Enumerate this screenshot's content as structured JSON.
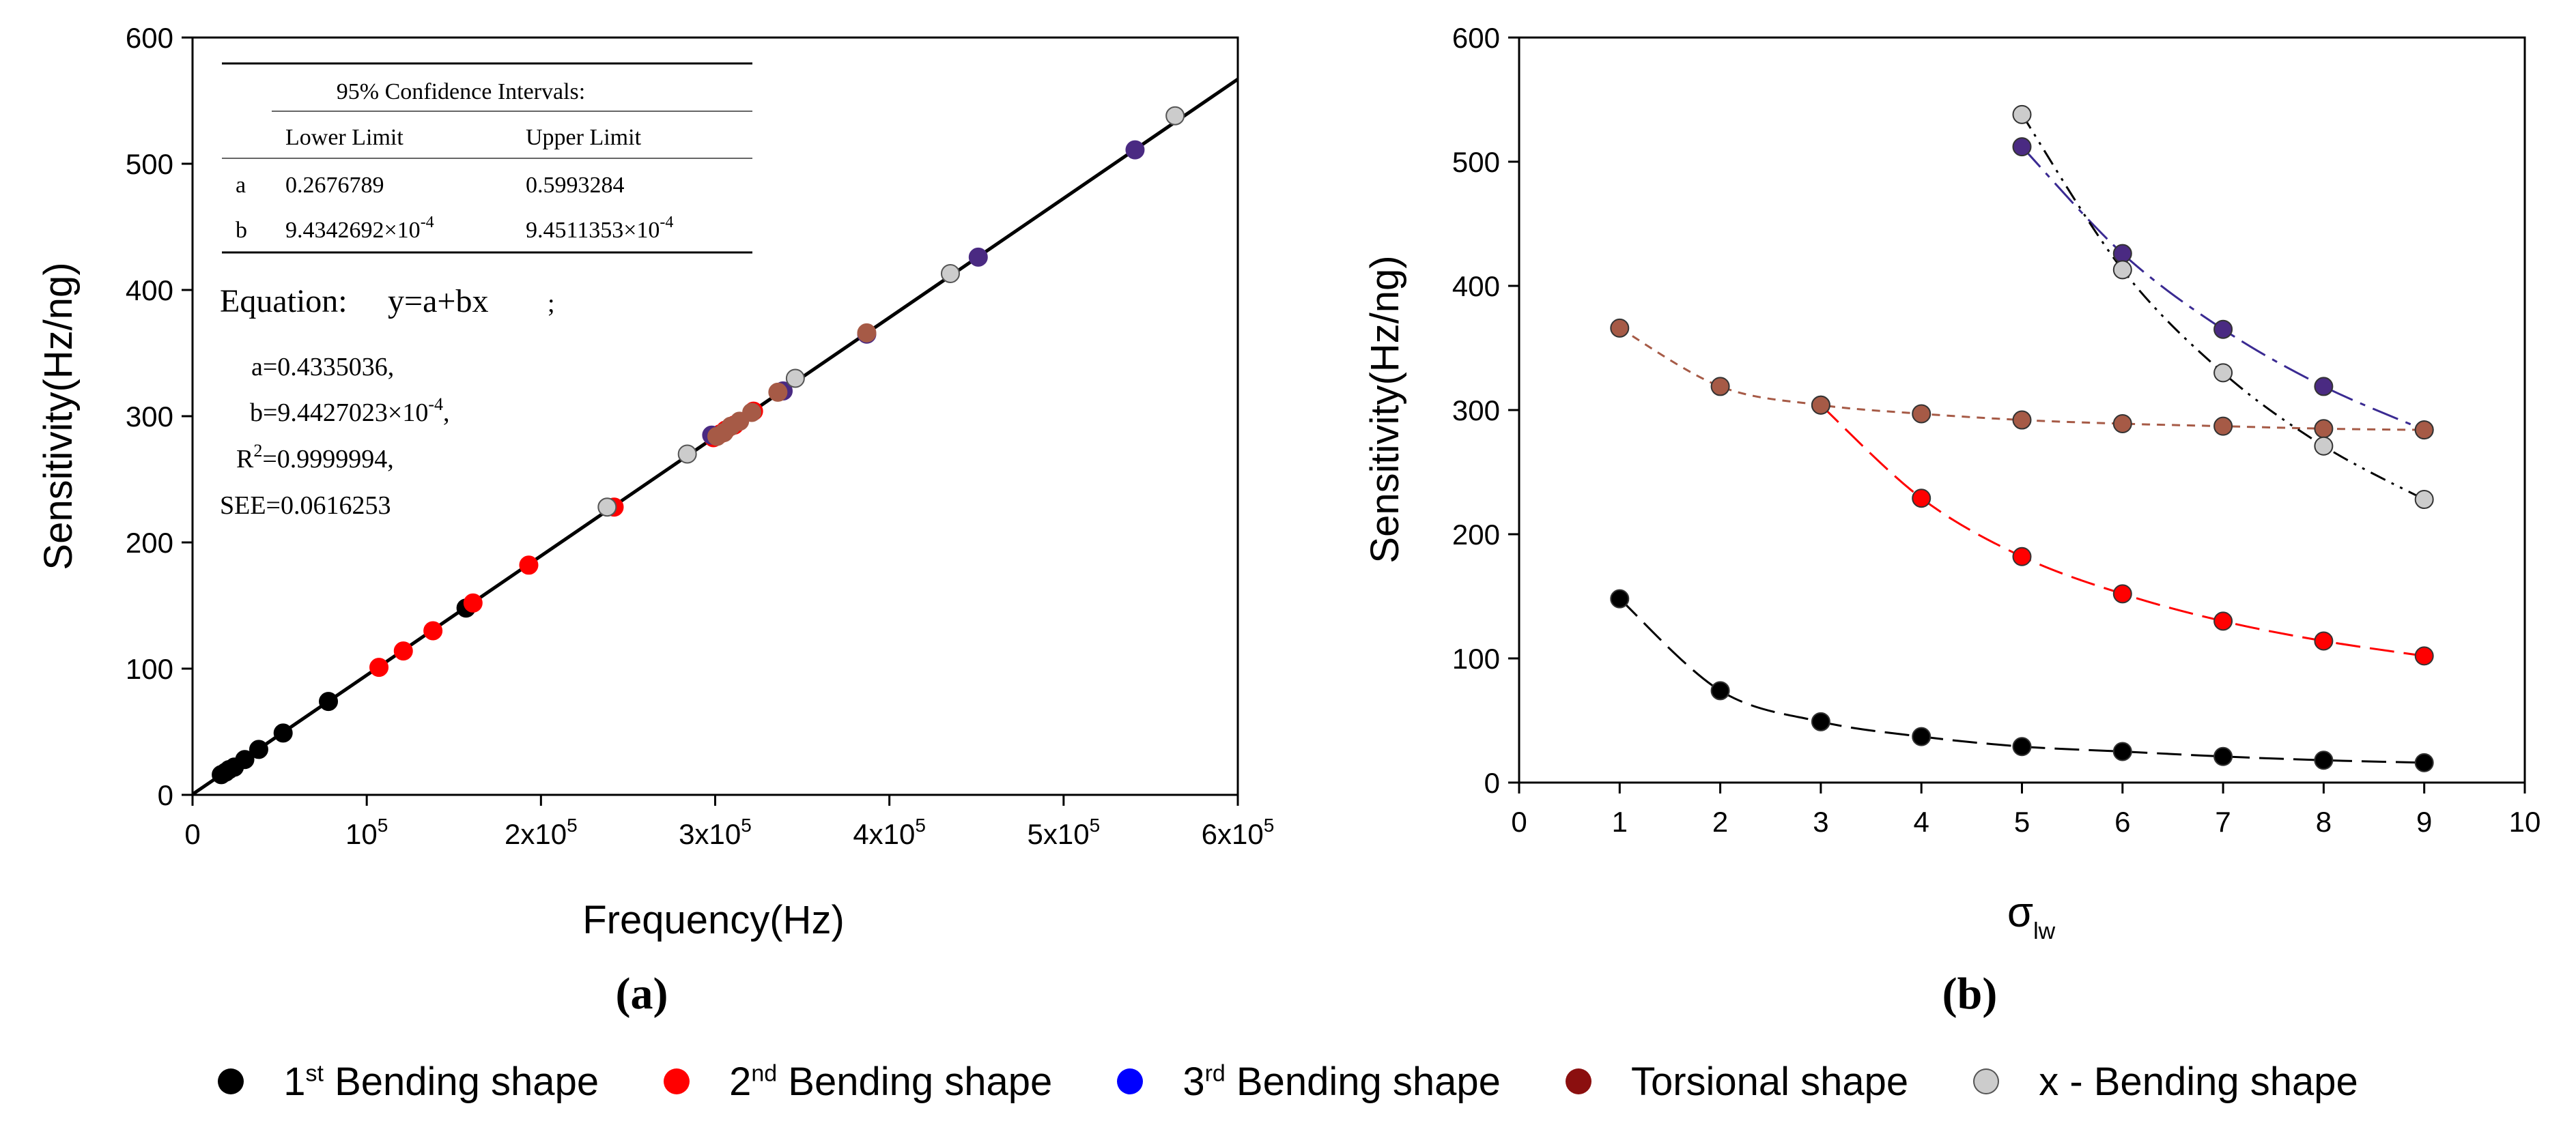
{
  "chart_data": [
    {
      "type": "scatter",
      "caption": "(a)",
      "xlabel": "Frequency(Hz)",
      "ylabel": "Sensitivity(Hz/ng)",
      "xlim": [
        0,
        600000
      ],
      "ylim": [
        0,
        600
      ],
      "x_ticks": [
        {
          "value": 0,
          "label": "0"
        },
        {
          "value": 100000,
          "base": "10",
          "exp": "5"
        },
        {
          "value": 200000,
          "base": "2x10",
          "exp": "5"
        },
        {
          "value": 300000,
          "base": "3x10",
          "exp": "5"
        },
        {
          "value": 400000,
          "base": "4x10",
          "exp": "5"
        },
        {
          "value": 500000,
          "base": "5x10",
          "exp": "5"
        },
        {
          "value": 600000,
          "base": "6x10",
          "exp": "5"
        }
      ],
      "y_ticks": [
        0,
        100,
        200,
        300,
        400,
        500,
        600
      ],
      "fit_line": {
        "a": 0.4335036,
        "b": 0.00094427023
      },
      "series": [
        {
          "name": "1st Bending shape",
          "color": "#000000",
          "points": [
            [
              16500,
              16
            ],
            [
              19000,
              18
            ],
            [
              21000,
              20
            ],
            [
              24000,
              22
            ],
            [
              30000,
              28
            ],
            [
              38000,
              36
            ],
            [
              52000,
              49
            ],
            [
              78000,
              74
            ],
            [
              157000,
              148
            ]
          ]
        },
        {
          "name": "2nd Bending shape",
          "color": "#ff0000",
          "points": [
            [
              107000,
              101
            ],
            [
              121000,
              114
            ],
            [
              138000,
              130
            ],
            [
              161000,
              152
            ],
            [
              193000,
              182
            ],
            [
              242000,
              228
            ],
            [
              299000,
              283
            ],
            [
              303000,
              286
            ],
            [
              306000,
              289
            ],
            [
              311000,
              293
            ],
            [
              322000,
              304
            ]
          ]
        },
        {
          "name": "3rd Bending shape",
          "color": "#4a2a82",
          "points": [
            [
              298000,
              285
            ],
            [
              339000,
              320
            ],
            [
              387000,
              365
            ],
            [
              451000,
              426
            ],
            [
              541000,
              511
            ]
          ]
        },
        {
          "name": "Torsional shape",
          "color": "#a65a46",
          "points": [
            [
              301000,
              284
            ],
            [
              305000,
              287
            ],
            [
              309000,
              292
            ],
            [
              314000,
              296
            ],
            [
              321000,
              303
            ],
            [
              336000,
              319
            ],
            [
              387000,
              366
            ]
          ]
        },
        {
          "name": "x - Bending shape",
          "color": "#cccccc",
          "points": [
            [
              238000,
              228
            ],
            [
              284000,
              270
            ],
            [
              346000,
              330
            ],
            [
              435000,
              413
            ],
            [
              564000,
              538
            ]
          ]
        }
      ],
      "inset": {
        "title": "95% Confidence Intervals:",
        "col_lower": "Lower Limit",
        "col_upper": "Upper Limit",
        "row_a": {
          "name": "a",
          "lower": "0.2676789",
          "upper": "0.5993284"
        },
        "row_b": {
          "name": "b",
          "lower_base": "9.4342692×10",
          "lower_exp": "-4",
          "upper_base": "9.4511353×10",
          "upper_exp": "-4"
        },
        "equation_label": "Equation:",
        "equation": "y=a+bx",
        "equation_suffix": ";",
        "a_value": "a=0.4335036,",
        "b_value_base": "b=9.4427023×10",
        "b_value_exp": "-4",
        "b_value_suffix": ",",
        "r2_pre": "R",
        "r2_exp": "2",
        "r2_post": "=0.9999994,",
        "see_value": "SEE=0.0616253"
      }
    },
    {
      "type": "line",
      "caption": "(b)",
      "xlabel": "σ",
      "xlabel_sub": "lw",
      "ylabel": "Sensitivity(Hz/ng)",
      "xlim": [
        0,
        10
      ],
      "ylim": [
        0,
        600
      ],
      "x_ticks": [
        0,
        1,
        2,
        3,
        4,
        5,
        6,
        7,
        8,
        9,
        10
      ],
      "y_ticks": [
        0,
        100,
        200,
        300,
        400,
        500,
        600
      ],
      "series": [
        {
          "name": "1st Bending shape",
          "color": "#000000",
          "line_color": "#000000",
          "dash": "36 14",
          "x": [
            1,
            2,
            3,
            4,
            5,
            6,
            7,
            8,
            9
          ],
          "values": [
            148,
            74,
            49,
            37,
            29,
            25,
            21,
            18,
            16
          ]
        },
        {
          "name": "2nd Bending shape",
          "color": "#ff0000",
          "line_color": "#ff0000",
          "dash": "36 14",
          "x": [
            3,
            4,
            5,
            6,
            7,
            8,
            9
          ],
          "values": [
            304,
            229,
            182,
            152,
            130,
            114,
            102
          ]
        },
        {
          "name": "3rd Bending shape",
          "color": "#4a2a82",
          "line_color": "#3a2a92",
          "dash": "40 12 8 12",
          "x": [
            5,
            6,
            7,
            8,
            9
          ],
          "values": [
            512,
            426,
            365,
            319,
            284
          ]
        },
        {
          "name": "Torsional shape",
          "color": "#a65a46",
          "line_color": "#a65a46",
          "dash": "12 10",
          "x": [
            1,
            2,
            3,
            4,
            5,
            6,
            7,
            8,
            9
          ],
          "values": [
            366,
            319,
            304,
            297,
            292,
            289,
            287,
            285,
            284
          ]
        },
        {
          "name": "x - Bending shape",
          "color": "#cccccc",
          "line_color": "#000000",
          "dash": "24 10 4 10 4 10",
          "x": [
            5,
            6,
            7,
            8,
            9
          ],
          "values": [
            538,
            413,
            330,
            271,
            228
          ]
        }
      ]
    }
  ],
  "legend": [
    {
      "base": "1",
      "sup": "st",
      "rest": " Bending shape",
      "color": "#000000"
    },
    {
      "base": "2",
      "sup": "nd",
      "rest": " Bending shape",
      "color": "#ff0000"
    },
    {
      "base": "3",
      "sup": "rd",
      "rest": " Bending shape",
      "color": "#0000ff"
    },
    {
      "base": "",
      "sup": "",
      "rest": "Torsional shape",
      "color": "#8b0f0f"
    },
    {
      "base": "",
      "sup": "",
      "rest": "x - Bending shape",
      "color": "#cccccc"
    }
  ]
}
